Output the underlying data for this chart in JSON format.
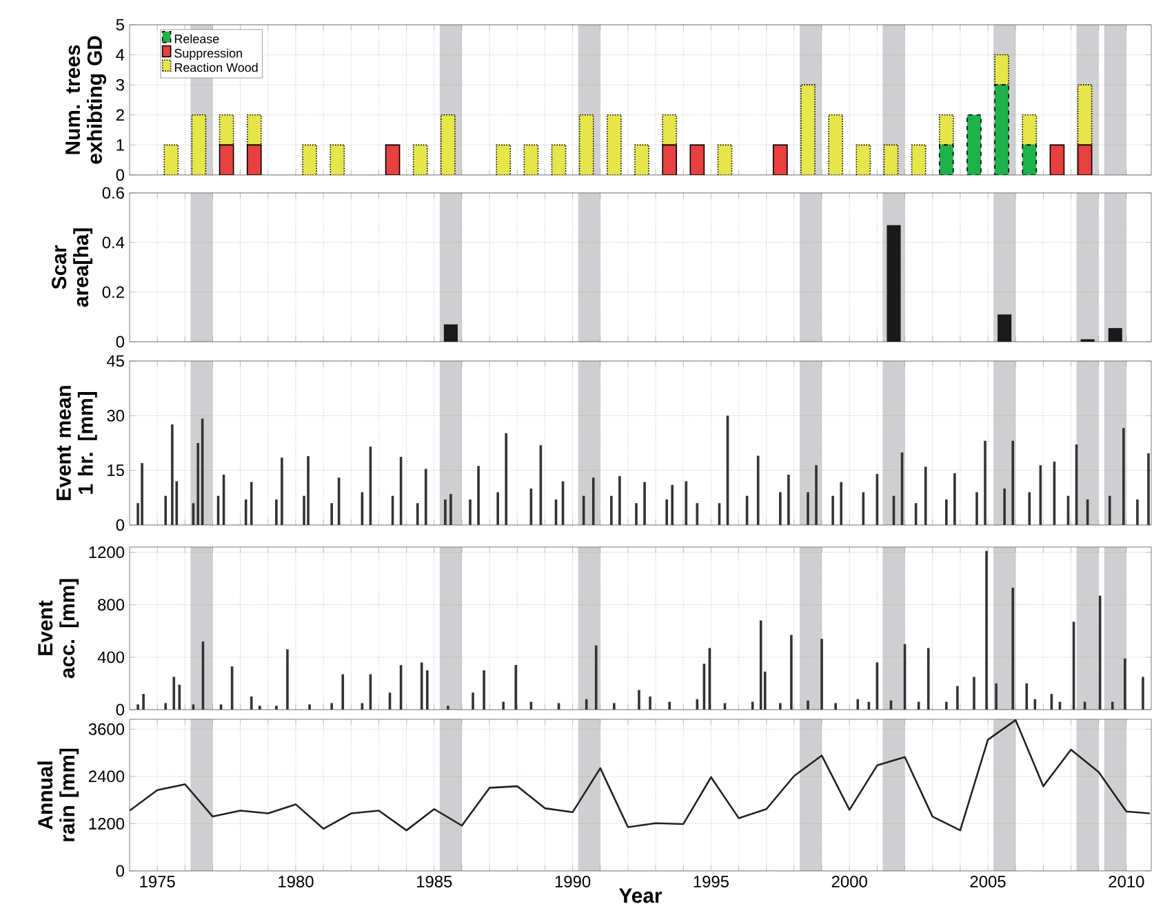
{
  "chart_data": [
    {
      "type": "bar",
      "stacked": true,
      "ylabel": "Num. trees exhibting GD",
      "legend": "top left",
      "grid": true,
      "tick_labels": "y",
      "xlim": [
        1974,
        2010.9
      ],
      "ylim": [
        0,
        5
      ],
      "yticks": [
        0,
        1,
        2,
        3,
        4,
        5
      ],
      "xticks": [
        1975,
        1980,
        1985,
        1990,
        1995,
        2000,
        2005,
        2010,
        1976,
        1977,
        1978,
        1979,
        1981,
        1982,
        1983,
        1984,
        1986,
        1987,
        1988,
        1989,
        1991,
        1992,
        1993,
        1994,
        1996,
        1997,
        1998,
        1999,
        2001,
        2002,
        2003,
        2004,
        2006,
        2007,
        2008,
        2009
      ],
      "bands": [
        {
          "axis": "x",
          "from": 1976.2,
          "to": 1977.0,
          "color": "#cfcfd1"
        },
        {
          "axis": "x",
          "from": 1985.2,
          "to": 1986.0,
          "color": "#cfcfd1"
        },
        {
          "axis": "x",
          "from": 1990.2,
          "to": 1991.0,
          "color": "#cfcfd1"
        },
        {
          "axis": "x",
          "from": 1998.2,
          "to": 1999.0,
          "color": "#cfcfd1"
        },
        {
          "axis": "x",
          "from": 2001.2,
          "to": 2002.0,
          "color": "#cfcfd1"
        },
        {
          "axis": "x",
          "from": 2005.2,
          "to": 2006.0,
          "color": "#cfcfd1"
        },
        {
          "axis": "x",
          "from": 2008.2,
          "to": 2009.0,
          "color": "#cfcfd1"
        },
        {
          "axis": "x",
          "from": 2009.2,
          "to": 2010.0,
          "color": "#cfcfd1"
        }
      ],
      "x": [
        1974.5,
        1975.5,
        1976.5,
        1977.5,
        1978.5,
        1979.5,
        1980.5,
        1981.5,
        1982.5,
        1983.5,
        1984.5,
        1985.5,
        1986.5,
        1987.5,
        1988.5,
        1989.5,
        1990.5,
        1991.5,
        1992.5,
        1993.5,
        1994.5,
        1995.5,
        1996.5,
        1997.5,
        1998.5,
        1999.5,
        2000.5,
        2001.5,
        2002.5,
        2003.5,
        2004.5,
        2005.5,
        2006.5,
        2007.5,
        2008.5,
        2009.5
      ],
      "series": [
        {
          "name": "Release",
          "color": "#1fb24a",
          "line_style": "dashed",
          "values": [
            0,
            0,
            0,
            0,
            0,
            0,
            0,
            0,
            0,
            0,
            0,
            0,
            0,
            0,
            0,
            0,
            0,
            0,
            0,
            0,
            0,
            0,
            0,
            0,
            0,
            0,
            0,
            0,
            0,
            1,
            2,
            3,
            1,
            0,
            0,
            0
          ]
        },
        {
          "name": "Suppression",
          "color": "#e8403f",
          "line_style": "solid",
          "values": [
            0,
            0,
            0,
            1,
            1,
            0,
            0,
            0,
            0,
            1,
            0,
            0,
            0,
            0,
            0,
            0,
            0,
            0,
            0,
            1,
            1,
            0,
            0,
            1,
            0,
            0,
            0,
            0,
            0,
            0,
            0,
            0,
            0,
            1,
            1,
            0
          ]
        },
        {
          "name": "Reaction Wood",
          "color": "#e6e64a",
          "line_style": "dotted",
          "values": [
            0,
            1,
            2,
            1,
            1,
            0,
            1,
            1,
            0,
            0,
            1,
            2,
            0,
            1,
            1,
            1,
            2,
            2,
            1,
            1,
            0,
            1,
            0,
            0,
            3,
            2,
            1,
            1,
            1,
            1,
            0,
            1,
            1,
            0,
            2,
            0
          ]
        }
      ]
    },
    {
      "type": "bar",
      "ylabel": "Scar area[ha]",
      "grid": true,
      "tick_labels": "y",
      "xlim": [
        1974,
        2010.9
      ],
      "ylim": [
        0,
        0.6
      ],
      "yticks": [
        0,
        0.2,
        0.4,
        0.6
      ],
      "xticks": [
        1975,
        1980,
        1985,
        1990,
        1995,
        2000,
        2005,
        2010,
        1976,
        1977,
        1978,
        1979,
        1981,
        1982,
        1983,
        1984,
        1986,
        1987,
        1988,
        1989,
        1991,
        1992,
        1993,
        1994,
        1996,
        1997,
        1998,
        1999,
        2001,
        2002,
        2003,
        2004,
        2006,
        2007,
        2008,
        2009
      ],
      "bands": [
        {
          "axis": "x",
          "from": 1976.2,
          "to": 1977.0,
          "color": "#cfcfd1"
        },
        {
          "axis": "x",
          "from": 1985.2,
          "to": 1986.0,
          "color": "#cfcfd1"
        },
        {
          "axis": "x",
          "from": 1990.2,
          "to": 1991.0,
          "color": "#cfcfd1"
        },
        {
          "axis": "x",
          "from": 1998.2,
          "to": 1999.0,
          "color": "#cfcfd1"
        },
        {
          "axis": "x",
          "from": 2001.2,
          "to": 2002.0,
          "color": "#cfcfd1"
        },
        {
          "axis": "x",
          "from": 2005.2,
          "to": 2006.0,
          "color": "#cfcfd1"
        },
        {
          "axis": "x",
          "from": 2008.2,
          "to": 2009.0,
          "color": "#cfcfd1"
        },
        {
          "axis": "x",
          "from": 2009.2,
          "to": 2010.0,
          "color": "#cfcfd1"
        }
      ],
      "x": [
        1985.6,
        2001.6,
        2005.6,
        2008.6,
        2009.6
      ],
      "series": [
        {
          "color": "#1a1a1a",
          "values": [
            0.07,
            0.47,
            0.11,
            0.01,
            0.055
          ]
        }
      ]
    },
    {
      "type": "bar",
      "ylabel": "Event mean 1 hr. [mm]",
      "grid": true,
      "tick_labels": "y",
      "xlim": [
        1974,
        2010.9
      ],
      "ylim": [
        0,
        45
      ],
      "yticks": [
        0,
        15,
        30,
        45
      ],
      "xticks": [
        1975,
        1980,
        1985,
        1990,
        1995,
        2000,
        2005,
        2010,
        1976,
        1977,
        1978,
        1979,
        1981,
        1982,
        1983,
        1984,
        1986,
        1987,
        1988,
        1989,
        1991,
        1992,
        1993,
        1994,
        1996,
        1997,
        1998,
        1999,
        2001,
        2002,
        2003,
        2004,
        2006,
        2007,
        2008,
        2009
      ],
      "bands": [
        {
          "axis": "x",
          "from": 1976.2,
          "to": 1977.0,
          "color": "#cfcfd1"
        },
        {
          "axis": "x",
          "from": 1985.2,
          "to": 1986.0,
          "color": "#cfcfd1"
        },
        {
          "axis": "x",
          "from": 1990.2,
          "to": 1991.0,
          "color": "#cfcfd1"
        },
        {
          "axis": "x",
          "from": 1998.2,
          "to": 1999.0,
          "color": "#cfcfd1"
        },
        {
          "axis": "x",
          "from": 2001.2,
          "to": 2002.0,
          "color": "#cfcfd1"
        },
        {
          "axis": "x",
          "from": 2005.2,
          "to": 2006.0,
          "color": "#cfcfd1"
        },
        {
          "axis": "x",
          "from": 2008.2,
          "to": 2009.0,
          "color": "#cfcfd1"
        },
        {
          "axis": "x",
          "from": 2009.2,
          "to": 2010.0,
          "color": "#cfcfd1"
        }
      ],
      "x": [
        1974.3,
        1974.45,
        1975.3,
        1975.54,
        1975.7,
        1976.3,
        1976.47,
        1976.63,
        1977.2,
        1977.4,
        1978.2,
        1978.4,
        1979.3,
        1979.5,
        1980.3,
        1980.45,
        1981.3,
        1981.56,
        1982.4,
        1982.7,
        1983.5,
        1983.8,
        1984.4,
        1984.7,
        1985.4,
        1985.6,
        1986.3,
        1986.6,
        1987.3,
        1987.6,
        1988.5,
        1988.85,
        1989.4,
        1989.65,
        1990.4,
        1990.75,
        1991.4,
        1991.7,
        1992.3,
        1992.6,
        1993.4,
        1993.6,
        1994.1,
        1994.5,
        1995.3,
        1995.6,
        1996.3,
        1996.7,
        1997.5,
        1997.8,
        1998.5,
        1998.8,
        1999.4,
        1999.7,
        2000.5,
        2001.0,
        2001.6,
        2001.9,
        2002.4,
        2002.75,
        2003.5,
        2003.8,
        2004.6,
        2004.9,
        2005.6,
        2005.9,
        2006.5,
        2006.9,
        2007.4,
        2007.9,
        2008.2,
        2008.6,
        2009.4,
        2009.9,
        2010.4,
        2010.8
      ],
      "series": [
        {
          "color": "#333333",
          "values": [
            6,
            17,
            8,
            27.6,
            12,
            6,
            22.5,
            29.2,
            8,
            13.8,
            7,
            11.8,
            7,
            18.5,
            8,
            18.9,
            6,
            13,
            9,
            21.5,
            8,
            18.7,
            6,
            15.4,
            7,
            8.5,
            7,
            16.2,
            9,
            25.2,
            10,
            21.9,
            7,
            12,
            8,
            13,
            8,
            13.4,
            6,
            11.8,
            7,
            11,
            12,
            6,
            6,
            30,
            8,
            19,
            9,
            13.8,
            9,
            16.4,
            8,
            11.8,
            9,
            14,
            8,
            19.9,
            6,
            16,
            7,
            14.2,
            9,
            23.1,
            10,
            23.1,
            9,
            16.4,
            17.4,
            8,
            22.1,
            7,
            8,
            26.6,
            7,
            19.7
          ]
        }
      ]
    },
    {
      "type": "bar",
      "ylabel": "Event acc. [mm]",
      "grid": true,
      "tick_labels": "y",
      "xlim": [
        1974,
        2010.9
      ],
      "ylim": [
        0,
        1240
      ],
      "yticks": [
        0,
        400,
        800,
        1200
      ],
      "xticks": [
        1975,
        1980,
        1985,
        1990,
        1995,
        2000,
        2005,
        2010,
        1976,
        1977,
        1978,
        1979,
        1981,
        1982,
        1983,
        1984,
        1986,
        1987,
        1988,
        1989,
        1991,
        1992,
        1993,
        1994,
        1996,
        1997,
        1998,
        1999,
        2001,
        2002,
        2003,
        2004,
        2006,
        2007,
        2008,
        2009
      ],
      "bands": [
        {
          "axis": "x",
          "from": 1976.2,
          "to": 1977.0,
          "color": "#cfcfd1"
        },
        {
          "axis": "x",
          "from": 1985.2,
          "to": 1986.0,
          "color": "#cfcfd1"
        },
        {
          "axis": "x",
          "from": 1990.2,
          "to": 1991.0,
          "color": "#cfcfd1"
        },
        {
          "axis": "x",
          "from": 1998.2,
          "to": 1999.0,
          "color": "#cfcfd1"
        },
        {
          "axis": "x",
          "from": 2001.2,
          "to": 2002.0,
          "color": "#cfcfd1"
        },
        {
          "axis": "x",
          "from": 2005.2,
          "to": 2006.0,
          "color": "#cfcfd1"
        },
        {
          "axis": "x",
          "from": 2008.2,
          "to": 2009.0,
          "color": "#cfcfd1"
        },
        {
          "axis": "x",
          "from": 2009.2,
          "to": 2010.0,
          "color": "#cfcfd1"
        }
      ],
      "x": [
        1974.3,
        1974.5,
        1975.3,
        1975.6,
        1975.8,
        1976.3,
        1976.65,
        1977.3,
        1977.7,
        1978.4,
        1978.7,
        1979.3,
        1979.7,
        1980.5,
        1981.3,
        1981.7,
        1982.4,
        1982.7,
        1983.4,
        1983.8,
        1984.55,
        1984.75,
        1985.5,
        1986.4,
        1986.8,
        1987.5,
        1987.95,
        1988.5,
        1989.5,
        1990.5,
        1990.85,
        1991.5,
        1992.4,
        1992.8,
        1993.5,
        1994.5,
        1994.75,
        1994.95,
        1995.5,
        1996.5,
        1996.8,
        1996.95,
        1997.5,
        1997.9,
        1998.5,
        1999.0,
        1999.5,
        2000.3,
        2000.7,
        2001.0,
        2001.5,
        2002.0,
        2002.5,
        2002.85,
        2003.5,
        2003.9,
        2004.5,
        2004.95,
        2005.3,
        2005.9,
        2006.4,
        2006.7,
        2007.3,
        2007.6,
        2008.1,
        2008.5,
        2009.05,
        2009.5,
        2009.95,
        2010.6
      ],
      "series": [
        {
          "color": "#333333",
          "values": [
            40,
            120,
            50,
            250,
            190,
            40,
            520,
            40,
            330,
            100,
            30,
            30,
            460,
            40,
            50,
            270,
            50,
            270,
            130,
            340,
            360,
            300,
            30,
            130,
            300,
            60,
            340,
            60,
            50,
            80,
            490,
            50,
            150,
            100,
            60,
            80,
            350,
            470,
            50,
            60,
            680,
            290,
            50,
            570,
            70,
            540,
            50,
            80,
            60,
            360,
            70,
            500,
            60,
            470,
            60,
            180,
            250,
            1210,
            200,
            930,
            200,
            80,
            120,
            60,
            670,
            60,
            870,
            60,
            390,
            250
          ]
        }
      ]
    },
    {
      "type": "line",
      "ylabel": "Annual rain [mm]",
      "xlabel": "Year",
      "grid": true,
      "xlim": [
        1974,
        2010.9
      ],
      "ylim": [
        0,
        3850
      ],
      "yticks": [
        0,
        1200,
        2400,
        3600
      ],
      "xticks": [
        1975,
        1980,
        1985,
        1990,
        1995,
        2000,
        2005,
        2010,
        {
          "value": 1976,
          "label": null
        },
        {
          "value": 1977,
          "label": null
        },
        {
          "value": 1978,
          "label": null
        },
        {
          "value": 1979,
          "label": null
        },
        {
          "value": 1981,
          "label": null
        },
        {
          "value": 1982,
          "label": null
        },
        {
          "value": 1983,
          "label": null
        },
        {
          "value": 1984,
          "label": null
        },
        {
          "value": 1986,
          "label": null
        },
        {
          "value": 1987,
          "label": null
        },
        {
          "value": 1988,
          "label": null
        },
        {
          "value": 1989,
          "label": null
        },
        {
          "value": 1991,
          "label": null
        },
        {
          "value": 1992,
          "label": null
        },
        {
          "value": 1993,
          "label": null
        },
        {
          "value": 1994,
          "label": null
        },
        {
          "value": 1996,
          "label": null
        },
        {
          "value": 1997,
          "label": null
        },
        {
          "value": 1998,
          "label": null
        },
        {
          "value": 1999,
          "label": null
        },
        {
          "value": 2001,
          "label": null
        },
        {
          "value": 2002,
          "label": null
        },
        {
          "value": 2003,
          "label": null
        },
        {
          "value": 2004,
          "label": null
        },
        {
          "value": 2006,
          "label": null
        },
        {
          "value": 2007,
          "label": null
        },
        {
          "value": 2008,
          "label": null
        },
        {
          "value": 2009,
          "label": null
        }
      ],
      "bands": [
        {
          "axis": "x",
          "from": 1976.2,
          "to": 1977.0,
          "color": "#cfcfd1"
        },
        {
          "axis": "x",
          "from": 1985.2,
          "to": 1986.0,
          "color": "#cfcfd1"
        },
        {
          "axis": "x",
          "from": 1990.2,
          "to": 1991.0,
          "color": "#cfcfd1"
        },
        {
          "axis": "x",
          "from": 1998.2,
          "to": 1999.0,
          "color": "#cfcfd1"
        },
        {
          "axis": "x",
          "from": 2001.2,
          "to": 2002.0,
          "color": "#cfcfd1"
        },
        {
          "axis": "x",
          "from": 2005.2,
          "to": 2006.0,
          "color": "#cfcfd1"
        },
        {
          "axis": "x",
          "from": 2008.2,
          "to": 2009.0,
          "color": "#cfcfd1"
        },
        {
          "axis": "x",
          "from": 2009.2,
          "to": 2010.0,
          "color": "#cfcfd1"
        }
      ],
      "x": [
        1974,
        1975,
        1976,
        1977,
        1978,
        1979,
        1980,
        1981,
        1982,
        1983,
        1984,
        1985,
        1986,
        1987,
        1988,
        1989,
        1990,
        1991,
        1992,
        1993,
        1994,
        1995,
        1996,
        1997,
        1998,
        1999,
        2000,
        2001,
        2002,
        2003,
        2004,
        2005,
        2006,
        2007,
        2008,
        2009,
        2010,
        2010.85
      ],
      "series": [
        {
          "color": "#222222",
          "values": [
            1530,
            2050,
            2200,
            1380,
            1530,
            1460,
            1690,
            1070,
            1460,
            1530,
            1030,
            1570,
            1150,
            2110,
            2150,
            1590,
            1490,
            2610,
            1110,
            1210,
            1190,
            2380,
            1340,
            1570,
            2410,
            2930,
            1550,
            2680,
            2890,
            1380,
            1030,
            3330,
            3830,
            2150,
            3080,
            2510,
            1510,
            1460
          ]
        }
      ]
    }
  ]
}
